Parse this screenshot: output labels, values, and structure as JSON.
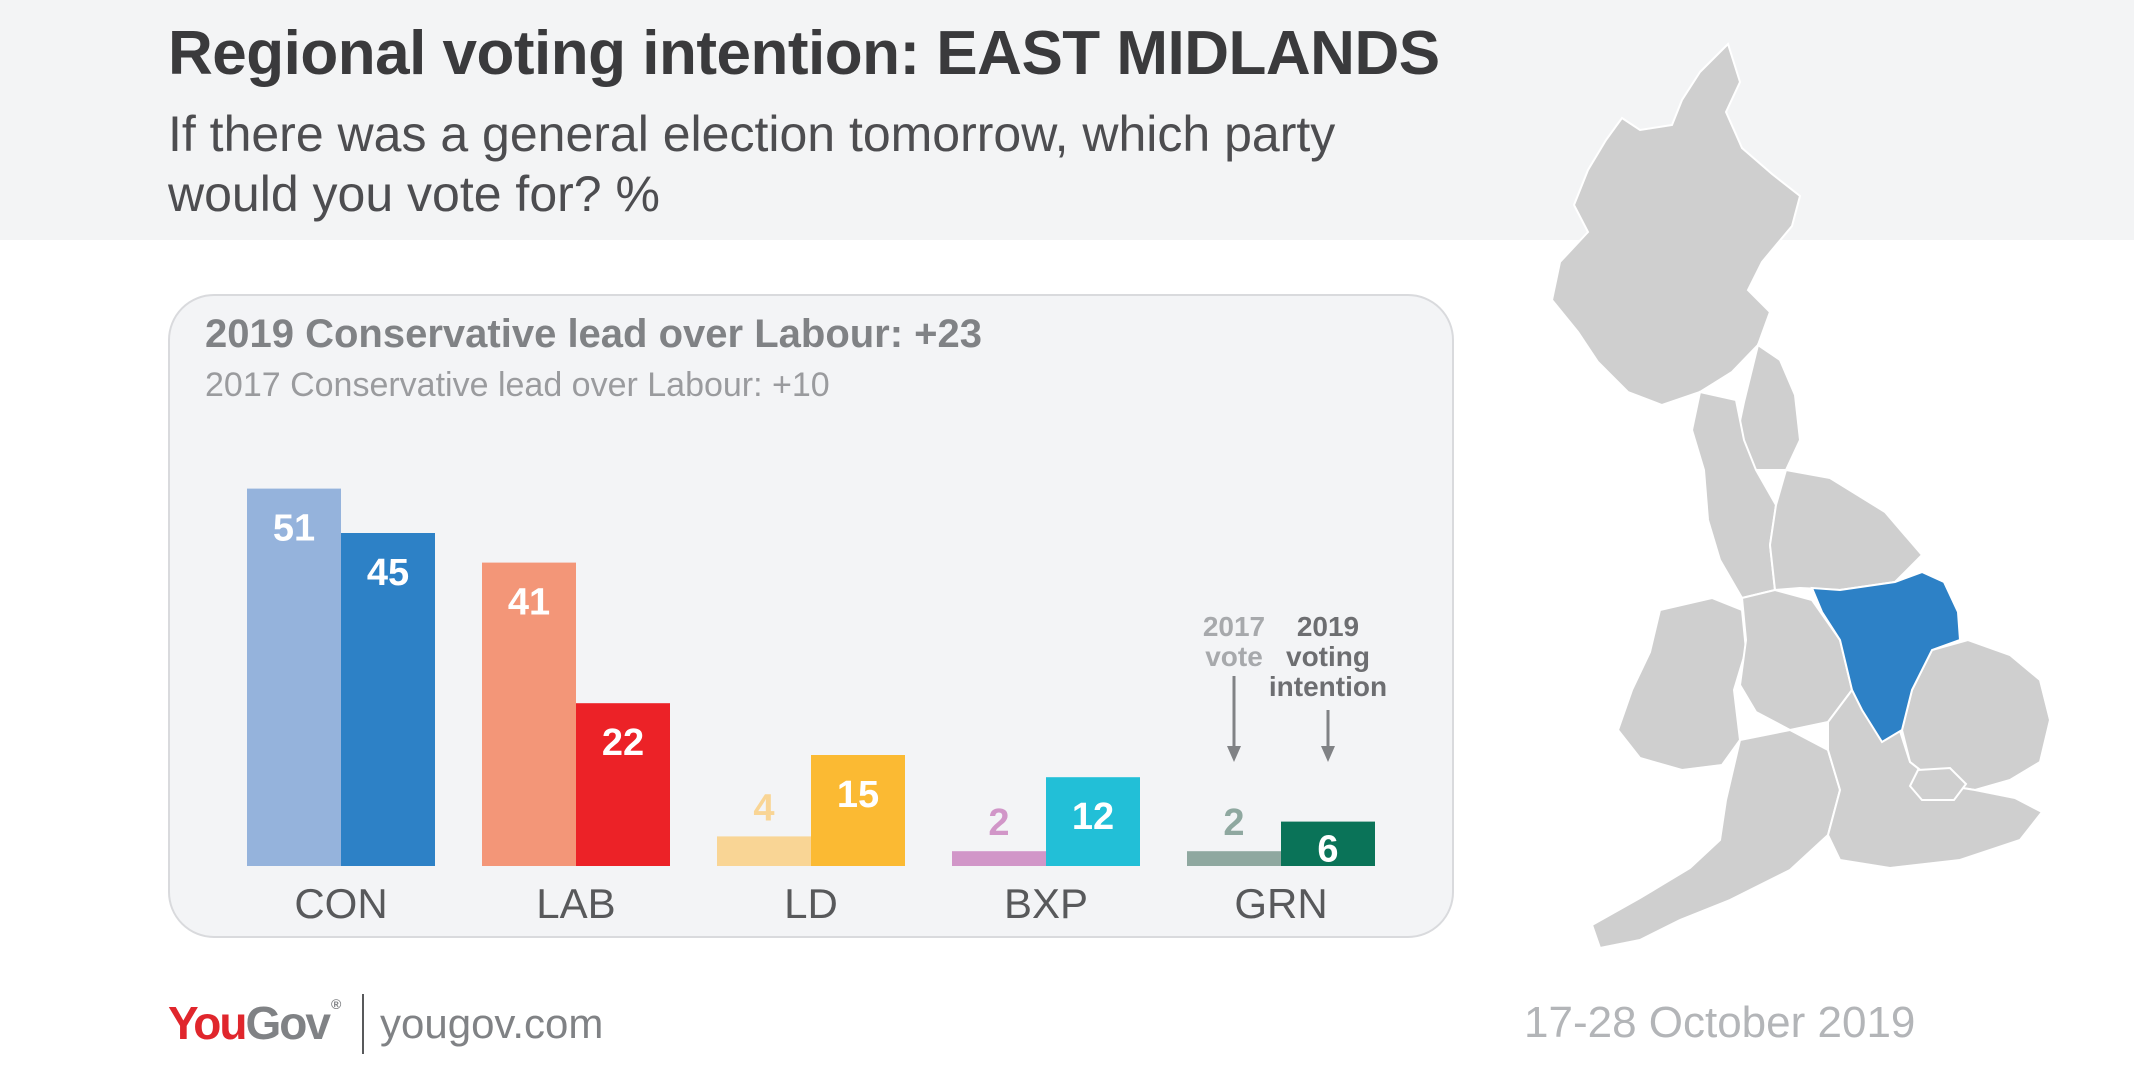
{
  "header": {
    "title": "Regional voting intention: EAST MIDLANDS",
    "subtitle": "If there was a general election tomorrow, which party would you vote for? %"
  },
  "panel": {
    "lead_2019": "2019 Conservative lead over Labour: +23",
    "lead_2017": "2017 Conservative lead over Labour: +10"
  },
  "chart_data": {
    "type": "bar",
    "title": "If there was a general election tomorrow, which party would you vote for? %",
    "categories": [
      "CON",
      "LAB",
      "LD",
      "BXP",
      "GRN"
    ],
    "series": [
      {
        "name": "2017 vote",
        "values": [
          51,
          41,
          4,
          2,
          2
        ]
      },
      {
        "name": "2019 voting intention",
        "values": [
          45,
          22,
          15,
          12,
          6
        ]
      }
    ],
    "colors_2017": [
      "#95b3dc",
      "#f39678",
      "#f9d595",
      "#d196c8",
      "#8fa8a0"
    ],
    "colors_2019": [
      "#2d81c6",
      "#ec2227",
      "#fbba33",
      "#22bfd7",
      "#0a7358"
    ],
    "label_colors_2017": [
      "#ffffff",
      "#ffffff",
      "#f9d595",
      "#d196c8",
      "#8fa8a0"
    ],
    "annotation_2017": [
      "2017",
      "vote"
    ],
    "annotation_2019": [
      "2019",
      "voting",
      "intention"
    ],
    "ylim": [
      0,
      55
    ],
    "xlabel": "",
    "ylabel": ""
  },
  "map": {
    "highlighted_region": "EAST MIDLANDS",
    "base_color": "#cfcfcf",
    "highlight_color": "#2d81c6"
  },
  "footer": {
    "logo_you": "You",
    "logo_gov": "Gov",
    "logo_reg": "®",
    "url": "yougov.com",
    "date": "17-28 October 2019"
  }
}
